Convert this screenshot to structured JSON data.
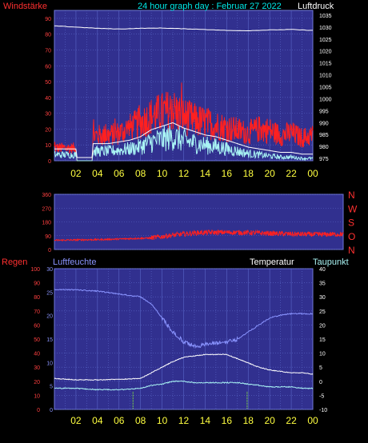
{
  "title": "24 hour graph day : Februar 27 2022",
  "colors": {
    "background": "#000000",
    "plot_bg": "#31308f",
    "grid": "#5a66c8",
    "red": "#ff2020",
    "white": "#ffffff",
    "cyan": "#a9f4f4",
    "blue_line": "#8a94ff",
    "yellow": "#ffff40",
    "green_marker": "#90ff30"
  },
  "chart_data": [
    {
      "type": "line",
      "name": "wind-pressure",
      "left_label": "Windstärke",
      "right_label": "Luftdruck",
      "yleft_ticks": [
        "0",
        "10",
        "20",
        "30",
        "40",
        "50",
        "60",
        "70",
        "80",
        "90"
      ],
      "yleft_range": [
        0,
        95
      ],
      "yright_ticks": [
        "975",
        "980",
        "985",
        "990",
        "995",
        "1000",
        "1005",
        "1010",
        "1015",
        "1020",
        "1025",
        "1030",
        "1035"
      ],
      "yright_range": [
        974,
        1037
      ],
      "x_ticks": [
        "02",
        "04",
        "06",
        "08",
        "10",
        "12",
        "14",
        "16",
        "18",
        "20",
        "22",
        "00"
      ],
      "x_range": [
        0,
        24
      ],
      "pressure": {
        "x": [
          0,
          2,
          4,
          6,
          8,
          10,
          12,
          14,
          16,
          18,
          20,
          22,
          24
        ],
        "y": [
          1030.5,
          1030,
          1029.5,
          1029.2,
          1029.5,
          1029.6,
          1029.3,
          1029.0,
          1028.6,
          1028.5,
          1028.8,
          1029.0,
          1028.6
        ]
      },
      "gust_max": {
        "x": [
          0,
          2,
          2.1,
          3.5,
          3.6,
          5,
          6,
          7,
          8,
          9,
          10,
          11,
          12,
          13,
          14,
          15,
          16,
          17,
          18,
          19,
          20,
          21,
          22,
          23,
          24
        ],
        "y": [
          10,
          10,
          0,
          0,
          20,
          20,
          22,
          26,
          30,
          35,
          38,
          40,
          35,
          32,
          30,
          28,
          26,
          24,
          22,
          25,
          24,
          20,
          22,
          18,
          20
        ]
      },
      "wind_avg": {
        "x": [
          0,
          2,
          2.1,
          3.5,
          3.6,
          5,
          6,
          7,
          8,
          9,
          10,
          11,
          12,
          13,
          14,
          15,
          16,
          17,
          18,
          19,
          20,
          21,
          22,
          23,
          24
        ],
        "y": [
          5,
          5,
          0,
          0,
          8,
          8,
          9,
          10,
          12,
          16,
          18,
          20,
          17,
          15,
          13,
          12,
          10,
          8,
          6,
          5,
          4,
          3,
          3,
          2,
          2
        ]
      }
    },
    {
      "type": "scatter",
      "name": "wind-direction",
      "right_labels": [
        "N",
        "W",
        "S",
        "O",
        "N"
      ],
      "y_ticks": [
        "0",
        "90",
        "180",
        "270",
        "360"
      ],
      "y_range": [
        0,
        360
      ],
      "x_range": [
        0,
        24
      ],
      "direction": {
        "x": [
          0,
          4,
          8,
          10,
          12,
          14,
          16,
          18,
          20,
          22,
          24
        ],
        "y": [
          60,
          65,
          75,
          95,
          110,
          112,
          110,
          105,
          100,
          98,
          100
        ]
      }
    },
    {
      "type": "line",
      "name": "rain-humidity-temp",
      "left_labels": [
        "Regen",
        "Luftfeuchte"
      ],
      "right_labels": [
        "Temperatur",
        "Taupunkt"
      ],
      "rain_ticks": [
        "0",
        "10",
        "20",
        "30",
        "40",
        "50",
        "60",
        "70",
        "80",
        "90",
        "100"
      ],
      "rain_range": [
        0,
        100
      ],
      "hum_ticks": [
        "0",
        "5",
        "10",
        "15",
        "20",
        "25",
        "30"
      ],
      "hum_range": [
        0,
        30
      ],
      "temp_ticks": [
        "-10",
        "-5",
        "0",
        "5",
        "10",
        "15",
        "20",
        "25",
        "30",
        "35",
        "40"
      ],
      "temp_range": [
        -10,
        40
      ],
      "x_ticks": [
        "02",
        "04",
        "06",
        "08",
        "10",
        "12",
        "14",
        "16",
        "18",
        "20",
        "22",
        "00"
      ],
      "x_range": [
        0,
        24
      ],
      "humidity": {
        "x": [
          0,
          2,
          4,
          6,
          8,
          9,
          10,
          11,
          12,
          13,
          14,
          15,
          16,
          17,
          18,
          19,
          20,
          21,
          22,
          23,
          24
        ],
        "y": [
          85,
          85,
          84,
          82,
          80,
          75,
          65,
          55,
          48,
          45,
          46,
          47,
          48,
          50,
          55,
          60,
          65,
          67,
          68,
          68,
          68
        ]
      },
      "temperature": {
        "x": [
          0,
          2,
          4,
          6,
          8,
          9,
          10,
          11,
          12,
          13,
          14,
          15,
          16,
          17,
          18,
          19,
          20,
          21,
          22,
          23,
          24
        ],
        "y": [
          1.0,
          0.5,
          0.5,
          0.7,
          1.0,
          3.0,
          5.0,
          7.0,
          8.5,
          9.0,
          9.5,
          9.5,
          9.5,
          8.0,
          6.5,
          5.0,
          4.0,
          3.5,
          3.0,
          3.0,
          2.5
        ]
      },
      "dewpoint": {
        "x": [
          0,
          2,
          4,
          6,
          8,
          9,
          10,
          11,
          12,
          13,
          14,
          15,
          16,
          17,
          18,
          19,
          20,
          21,
          22,
          23,
          24
        ],
        "y": [
          -2.5,
          -2.5,
          -3,
          -3,
          -2.5,
          -1.5,
          -1.0,
          0.0,
          0.0,
          -0.5,
          -0.5,
          -0.5,
          -0.5,
          -0.5,
          -1.0,
          -1.5,
          -2.0,
          -2.0,
          -2.0,
          -2.5,
          -2.5
        ]
      },
      "markers_x": [
        7.3,
        17.9
      ]
    }
  ]
}
